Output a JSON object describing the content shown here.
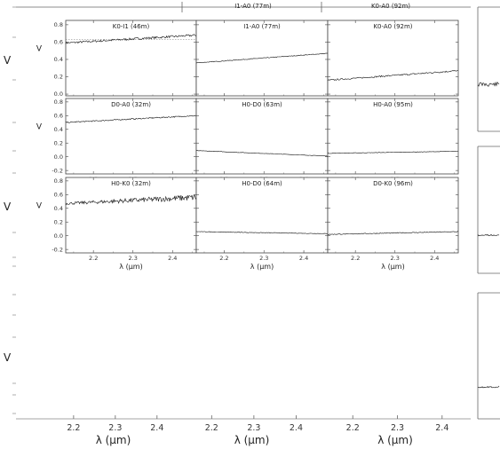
{
  "chart_data": {
    "type": "line",
    "xlabel": "λ (μm)",
    "ylabel": "V",
    "xlim": [
      2.13,
      2.46
    ],
    "x_ticks": [
      2.2,
      2.3,
      2.4
    ],
    "y_ticks": [
      0.0,
      0.2,
      0.4,
      0.6,
      0.8
    ],
    "rows": [
      {
        "ylim": [
          -0.02,
          0.85
        ],
        "y_ticks": [
          0.0,
          0.2,
          0.4,
          0.6,
          0.8
        ]
      },
      {
        "ylim": [
          -0.25,
          0.85
        ],
        "y_ticks": [
          -0.2,
          0.0,
          0.2,
          0.4,
          0.6,
          0.8
        ]
      },
      {
        "ylim": [
          -0.25,
          0.85
        ],
        "y_ticks": [
          -0.2,
          0.0,
          0.2,
          0.4,
          0.6,
          0.8
        ]
      }
    ],
    "panels": [
      {
        "title": "K0-I1 (46m)",
        "row": 0,
        "col": 0,
        "y_start": 0.59,
        "y_end": 0.68,
        "noise": 0.012,
        "model": 0.63
      },
      {
        "title": "I1-A0 (77m)",
        "row": 0,
        "col": 1,
        "y_start": 0.36,
        "y_end": 0.47,
        "noise": 0.004
      },
      {
        "title": "K0-A0 (92m)",
        "row": 0,
        "col": 2,
        "y_start": 0.16,
        "y_end": 0.27,
        "noise": 0.008
      },
      {
        "title": "D0-A0 (32m)",
        "row": 1,
        "col": 0,
        "y_start": 0.5,
        "y_end": 0.6,
        "noise": 0.008
      },
      {
        "title": "H0-D0 (63m)",
        "row": 1,
        "col": 1,
        "y_start": 0.09,
        "y_end": 0.01,
        "noise": 0.003
      },
      {
        "title": "H0-A0 (95m)",
        "row": 1,
        "col": 2,
        "y_start": 0.05,
        "y_end": 0.08,
        "noise": 0.003
      },
      {
        "title": "H0-K0 (32m)",
        "row": 2,
        "col": 0,
        "y_start": 0.47,
        "y_end": 0.56,
        "noise": 0.03
      },
      {
        "title": "H0-D0 (64m)",
        "row": 2,
        "col": 1,
        "y_start": 0.06,
        "y_end": 0.03,
        "noise": 0.004
      },
      {
        "title": "D0-K0 (96m)",
        "row": 2,
        "col": 2,
        "y_start": 0.02,
        "y_end": 0.06,
        "noise": 0.006
      }
    ],
    "background": {
      "titles": [
        "I1-A0 (77m)",
        "K0-A0 (92m)"
      ],
      "x_ticks": [
        2.2,
        2.3,
        2.4
      ],
      "xlabel": "λ (μm)",
      "ylabel": "V"
    }
  }
}
